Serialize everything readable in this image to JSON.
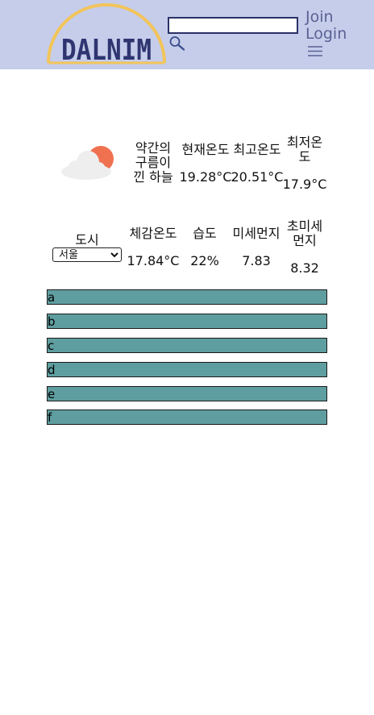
{
  "header": {
    "logo_text": "DALNIM",
    "search": {
      "value": "",
      "placeholder": ""
    },
    "join_label": "Join",
    "login_label": "Login",
    "icons": [
      "search-icon",
      "menu-icon"
    ]
  },
  "colors": {
    "header_bg": "#c5cdeb",
    "logo_text": "#2e3570",
    "logo_arc": "#f2c45a",
    "bar_bg": "#5f9ea0",
    "link": "#5b6294"
  },
  "weather": {
    "icon": "partly-cloudy-icon",
    "description": "약간의 구름이 낀 하늘",
    "headers": {
      "current": "현재온도",
      "max": "최고온도",
      "min": "최저온도",
      "city": "도시",
      "feels_like": "체감온도",
      "humidity": "습도",
      "pm10": "미세먼지",
      "pm25": "초미세먼지"
    },
    "values": {
      "current": "19.28°C",
      "max": "20.51°C",
      "min": "17.9°C",
      "feels_like": "17.84°C",
      "humidity": "22%",
      "pm10": "7.83",
      "pm25": "8.32"
    },
    "city_select": {
      "selected": "서울"
    }
  },
  "list_items": [
    "a",
    "b",
    "c",
    "d",
    "e",
    "f"
  ]
}
